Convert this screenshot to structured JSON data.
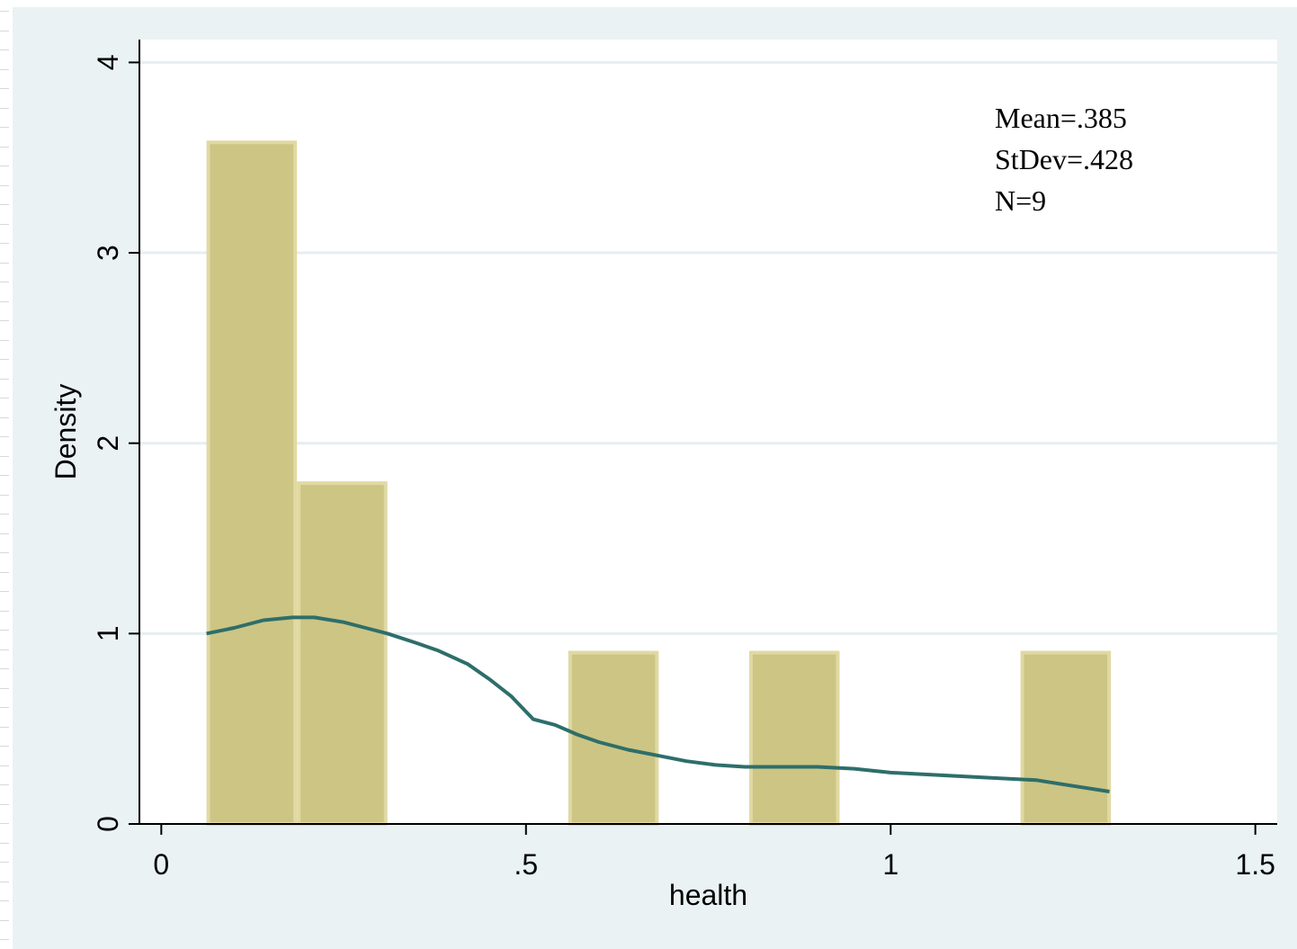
{
  "chart_data": {
    "type": "bar",
    "subtype": "histogram with kernel density line",
    "xlabel": "health",
    "ylabel": "Density",
    "xlim": [
      -0.03,
      1.53
    ],
    "ylim": [
      0,
      4.12
    ],
    "xticks": [
      {
        "value": 0,
        "label": "0"
      },
      {
        "value": 0.5,
        "label": ".5"
      },
      {
        "value": 1,
        "label": "1"
      },
      {
        "value": 1.5,
        "label": "1.5"
      }
    ],
    "yticks": [
      {
        "value": 0,
        "label": "0"
      },
      {
        "value": 1,
        "label": "1"
      },
      {
        "value": 2,
        "label": "2"
      },
      {
        "value": 3,
        "label": "3"
      },
      {
        "value": 4,
        "label": "4"
      }
    ],
    "grid": true,
    "bars": [
      {
        "x0": 0.062,
        "x1": 0.186,
        "density": 3.58
      },
      {
        "x0": 0.186,
        "x1": 0.31,
        "density": 1.79
      },
      {
        "x0": 0.558,
        "x1": 0.682,
        "density": 0.9
      },
      {
        "x0": 0.806,
        "x1": 0.93,
        "density": 0.9
      },
      {
        "x0": 1.178,
        "x1": 1.302,
        "density": 0.9
      }
    ],
    "density_line": {
      "x": [
        0.062,
        0.1,
        0.14,
        0.18,
        0.21,
        0.25,
        0.28,
        0.31,
        0.35,
        0.38,
        0.42,
        0.45,
        0.48,
        0.51,
        0.54,
        0.57,
        0.6,
        0.64,
        0.68,
        0.72,
        0.76,
        0.8,
        0.85,
        0.9,
        0.95,
        1.0,
        1.05,
        1.1,
        1.15,
        1.2,
        1.25,
        1.3
      ],
      "y": [
        1.0,
        1.03,
        1.07,
        1.085,
        1.085,
        1.06,
        1.03,
        1.0,
        0.95,
        0.91,
        0.84,
        0.76,
        0.67,
        0.55,
        0.52,
        0.47,
        0.43,
        0.39,
        0.36,
        0.33,
        0.31,
        0.3,
        0.3,
        0.3,
        0.29,
        0.27,
        0.26,
        0.25,
        0.24,
        0.23,
        0.2,
        0.17
      ]
    },
    "annotations": [
      "Mean=.385",
      "StDev=.428",
      "N=9"
    ],
    "colors": {
      "background": "#eaf2f3",
      "plot_background": "#ffffff",
      "bar_fill": "#cdc584",
      "bar_outline": "#e0d9a3",
      "line": "#2e6e6a",
      "grid": "#e6eef0"
    }
  }
}
